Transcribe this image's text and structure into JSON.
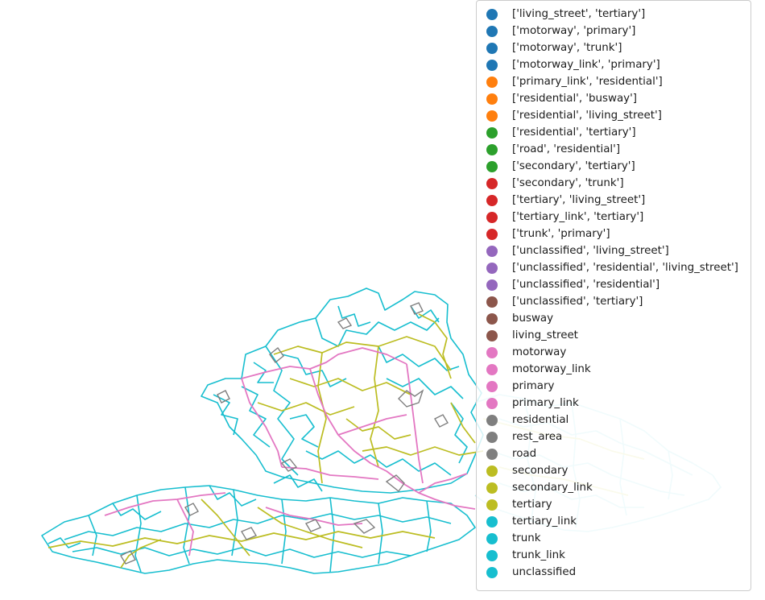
{
  "legend": [
    {
      "label": "['living_street', 'tertiary']",
      "color": "#1f77b4"
    },
    {
      "label": "['motorway', 'primary']",
      "color": "#1f77b4"
    },
    {
      "label": "['motorway', 'trunk']",
      "color": "#1f77b4"
    },
    {
      "label": "['motorway_link', 'primary']",
      "color": "#1f77b4"
    },
    {
      "label": "['primary_link', 'residential']",
      "color": "#ff7f0e"
    },
    {
      "label": "['residential', 'busway']",
      "color": "#ff7f0e"
    },
    {
      "label": "['residential', 'living_street']",
      "color": "#ff7f0e"
    },
    {
      "label": "['residential', 'tertiary']",
      "color": "#2ca02c"
    },
    {
      "label": "['road', 'residential']",
      "color": "#2ca02c"
    },
    {
      "label": "['secondary', 'tertiary']",
      "color": "#2ca02c"
    },
    {
      "label": "['secondary', 'trunk']",
      "color": "#d62728"
    },
    {
      "label": "['tertiary', 'living_street']",
      "color": "#d62728"
    },
    {
      "label": "['tertiary_link', 'tertiary']",
      "color": "#d62728"
    },
    {
      "label": "['trunk', 'primary']",
      "color": "#d62728"
    },
    {
      "label": "['unclassified', 'living_street']",
      "color": "#9467bd"
    },
    {
      "label": "['unclassified', 'residential', 'living_street']",
      "color": "#9467bd"
    },
    {
      "label": "['unclassified', 'residential']",
      "color": "#9467bd"
    },
    {
      "label": "['unclassified', 'tertiary']",
      "color": "#8c564b"
    },
    {
      "label": "busway",
      "color": "#8c564b"
    },
    {
      "label": "living_street",
      "color": "#8c564b"
    },
    {
      "label": "motorway",
      "color": "#e377c2"
    },
    {
      "label": "motorway_link",
      "color": "#e377c2"
    },
    {
      "label": "primary",
      "color": "#e377c2"
    },
    {
      "label": "primary_link",
      "color": "#e377c2"
    },
    {
      "label": "residential",
      "color": "#7f7f7f"
    },
    {
      "label": "rest_area",
      "color": "#7f7f7f"
    },
    {
      "label": "road",
      "color": "#7f7f7f"
    },
    {
      "label": "secondary",
      "color": "#bcbd22"
    },
    {
      "label": "secondary_link",
      "color": "#bcbd22"
    },
    {
      "label": "tertiary",
      "color": "#bcbd22"
    },
    {
      "label": "tertiary_link",
      "color": "#17becf"
    },
    {
      "label": "trunk",
      "color": "#17becf"
    },
    {
      "label": "trunk_link",
      "color": "#17becf"
    },
    {
      "label": "unclassified",
      "color": "#17becf"
    }
  ],
  "colors": {
    "unclassified": "#17becf",
    "secondary": "#bcbd22",
    "primary": "#e377c2",
    "residential": "#7f7f7f"
  }
}
